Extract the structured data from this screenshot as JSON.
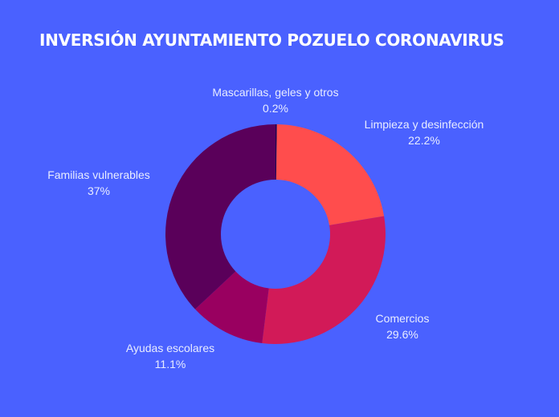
{
  "header": {
    "title": "INVERSIÓN AYUNTAMIENTO POZUELO CORONAVIRUS"
  },
  "colors": {
    "background": "#4A61FF",
    "text": "#E8ECFF"
  },
  "chart_data": {
    "type": "pie",
    "subtype": "donut",
    "title": "INVERSIÓN AYUNTAMIENTO POZUELO CORONAVIRUS",
    "categories": [
      "Mascarillas, geles y otros",
      "Limpieza y desinfección",
      "Comercios",
      "Ayudas escolares",
      "Familias vulnerables"
    ],
    "values": [
      0.2,
      22.2,
      29.6,
      11.1,
      37
    ],
    "value_labels": [
      "0.2%",
      "22.2%",
      "29.6%",
      "11.1%",
      "37%"
    ],
    "colors": [
      "#1E0050",
      "#FF4D4D",
      "#D21A58",
      "#990060",
      "#5A005A"
    ],
    "unit": "%",
    "start_angle": "top, clockwise",
    "legend": "none (labels outside slices)"
  },
  "labels": [
    {
      "name": "Mascarillas, geles y otros",
      "value": "0.2%"
    },
    {
      "name": "Limpieza y desinfección",
      "value": "22.2%"
    },
    {
      "name": "Comercios",
      "value": "29.6%"
    },
    {
      "name": "Ayudas escolares",
      "value": "11.1%"
    },
    {
      "name": "Familias vulnerables",
      "value": "37%"
    }
  ]
}
